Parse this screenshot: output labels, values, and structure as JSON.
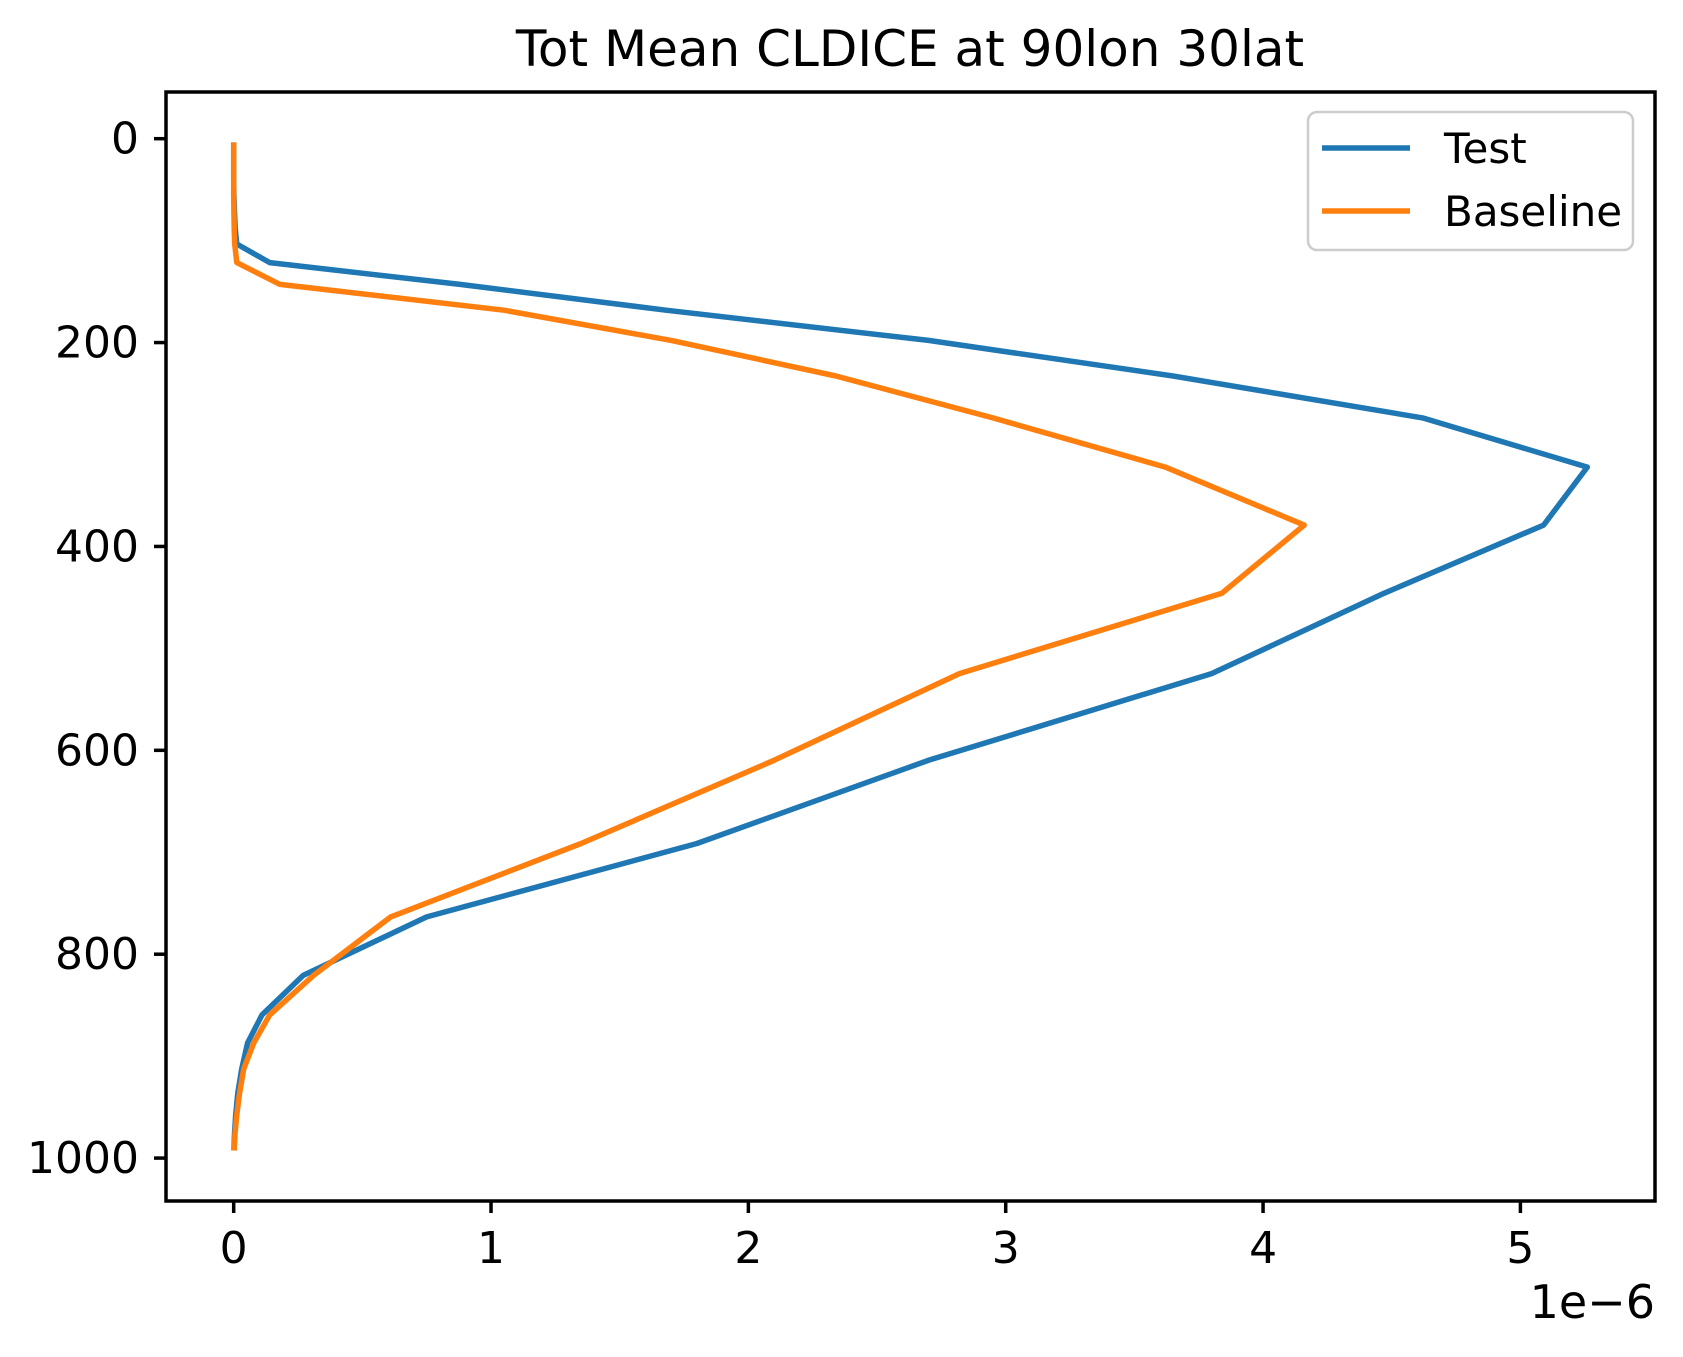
{
  "figure": {
    "title": "Tot Mean CLDICE at 90lon 30lat"
  },
  "chart_data": {
    "type": "line",
    "title": "Tot Mean CLDICE at 90lon 30lat",
    "xlabel": "",
    "ylabel": "",
    "x_offset_label": "1e−6",
    "x_scale_factor": 1e-06,
    "x_units_note": "x values below are in units of 1e-6 (kg/kg), matching the axis offset label",
    "y_axis_inverted": true,
    "grid": false,
    "xlim": [
      -0.263,
      5.523
    ],
    "ylim": [
      1042.1,
      -45.8
    ],
    "x_ticks": {
      "values": [
        0,
        1,
        2,
        3,
        4,
        5
      ],
      "labels": [
        "0",
        "1",
        "2",
        "3",
        "4",
        "5"
      ]
    },
    "y_ticks": {
      "values": [
        0,
        200,
        400,
        600,
        800,
        1000
      ],
      "labels": [
        "0",
        "200",
        "400",
        "600",
        "800",
        "1000"
      ]
    },
    "y_levels": [
      3.64,
      7.59,
      14.36,
      24.61,
      38.27,
      54.6,
      72.01,
      87.82,
      103.32,
      121.55,
      142.9,
      168.2,
      197.9,
      232.8,
      273.9,
      322.2,
      379.1,
      446.0,
      524.7,
      609.8,
      691.4,
      763.4,
      820.8,
      859.5,
      887.0,
      912.6,
      936.2,
      957.5,
      976.3,
      992.6
    ],
    "series": [
      {
        "name": "Test",
        "color": "#1f77b4",
        "values": [
          0.0,
          0.0,
          0.0,
          0.0,
          0.0,
          0.001,
          0.003,
          0.006,
          0.012,
          0.14,
          0.88,
          1.68,
          2.7,
          3.65,
          4.62,
          5.26,
          5.09,
          4.47,
          3.8,
          2.7,
          1.8,
          0.75,
          0.27,
          0.11,
          0.054,
          0.031,
          0.016,
          0.008,
          0.003,
          0.001
        ]
      },
      {
        "name": "Baseline",
        "color": "#ff7f0e",
        "values": [
          0.0,
          0.0,
          0.0,
          0.0,
          0.0,
          0.0,
          0.001,
          0.002,
          0.004,
          0.012,
          0.18,
          1.05,
          1.7,
          2.34,
          2.95,
          3.62,
          4.16,
          3.84,
          2.82,
          2.1,
          1.35,
          0.61,
          0.31,
          0.14,
          0.078,
          0.039,
          0.023,
          0.012,
          0.005,
          0.002
        ]
      }
    ],
    "legend": {
      "location": "upper right",
      "entries": [
        "Test",
        "Baseline"
      ]
    }
  }
}
